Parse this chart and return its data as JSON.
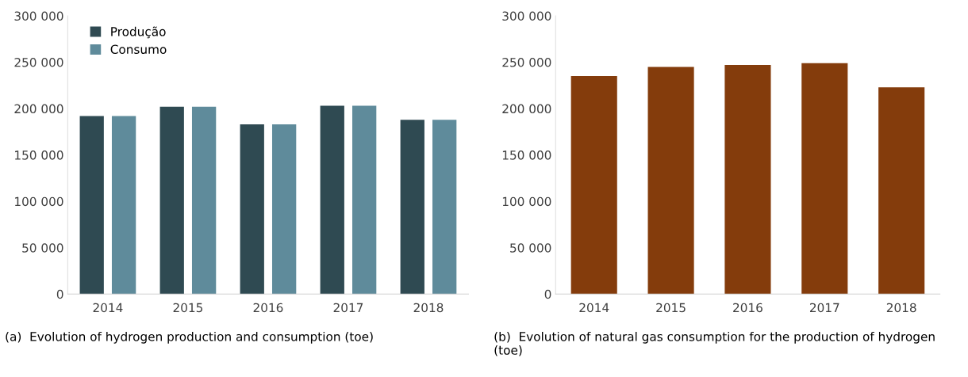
{
  "chart_data": [
    {
      "type": "bar",
      "categories": [
        "2014",
        "2015",
        "2016",
        "2017",
        "2018"
      ],
      "series": [
        {
          "name": "Produção",
          "color": "#2f4a52",
          "values": [
            192000,
            202000,
            183000,
            203000,
            188000
          ]
        },
        {
          "name": "Consumo",
          "color": "#5f8b9b",
          "values": [
            192000,
            202000,
            183000,
            203000,
            188000
          ]
        }
      ],
      "ylim": [
        0,
        300000
      ],
      "yticks": [
        {
          "value": 0,
          "label": "0"
        },
        {
          "value": 50000,
          "label": "50 000"
        },
        {
          "value": 100000,
          "label": "100 000"
        },
        {
          "value": 150000,
          "label": "150 000"
        },
        {
          "value": 200000,
          "label": "200 000"
        },
        {
          "value": 250000,
          "label": "250 000"
        },
        {
          "value": 300000,
          "label": "300 000"
        }
      ],
      "legend": "top left",
      "annotations": [
        "(a)  Evolution of hydrogen production and consumption (toe)"
      ]
    },
    {
      "type": "bar",
      "categories": [
        "2014",
        "2015",
        "2016",
        "2017",
        "2018"
      ],
      "series": [
        {
          "color": "#843c0c",
          "values": [
            235000,
            245000,
            247000,
            249000,
            223000
          ]
        }
      ],
      "ylim": [
        0,
        300000
      ],
      "yticks": [
        {
          "value": 0,
          "label": "0"
        },
        {
          "value": 50000,
          "label": "50 000"
        },
        {
          "value": 100000,
          "label": "100 000"
        },
        {
          "value": 150000,
          "label": "150 000"
        },
        {
          "value": 200000,
          "label": "200 000"
        },
        {
          "value": 250000,
          "label": "250 000"
        },
        {
          "value": 300000,
          "label": "300 000"
        }
      ],
      "annotations": [
        "(b)  Evolution of natural gas consumption for the production of hydrogen (toe)"
      ]
    }
  ]
}
